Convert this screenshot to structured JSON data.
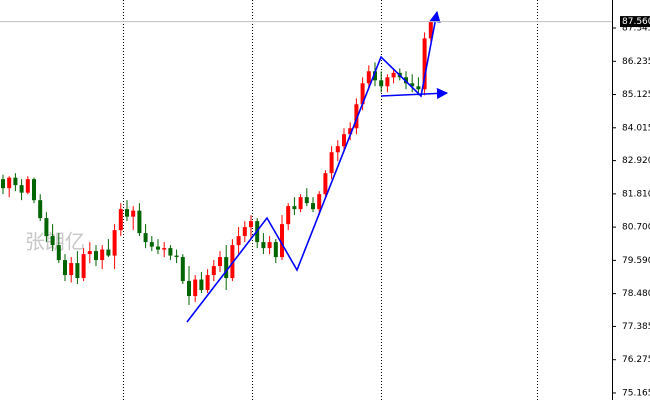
{
  "chart_data": {
    "type": "candlestick",
    "watermark": "张朗亿",
    "up_color": "#ff0000",
    "down_color": "#006400",
    "ylim": [
      74.93,
      88.28
    ],
    "yticks": [
      87.345,
      86.235,
      85.125,
      84.015,
      {
        "value": 82.92,
        "label": "82.920"
      },
      {
        "value": 81.81,
        "label": "81.810"
      },
      {
        "value": 80.7,
        "label": "80.700"
      },
      {
        "value": 79.59,
        "label": "79.590"
      },
      {
        "value": 78.48,
        "label": "78.480"
      },
      77.385,
      76.275,
      75.165
    ],
    "last_price": {
      "value": 87.56,
      "label": "87.560"
    },
    "open": [
      82.3,
      82.0,
      82.35,
      82.1,
      81.85,
      82.3,
      81.6,
      81.0,
      80.4,
      80.1,
      79.6,
      79.1,
      79.5,
      79.0,
      79.8,
      79.9,
      79.6,
      79.95,
      79.75,
      80.6,
      81.3,
      81.05,
      81.25,
      80.5,
      80.2,
      80.05,
      79.95,
      80.0,
      79.75,
      79.7,
      78.9,
      78.4,
      78.95,
      78.6,
      79.1,
      79.4,
      79.7,
      79.0,
      80.1,
      80.4,
      80.7,
      80.9,
      80.2,
      80.0,
      80.2,
      79.7,
      80.8,
      81.4,
      81.3,
      81.7,
      81.5,
      81.3,
      81.8,
      82.5,
      83.2,
      83.4,
      83.8,
      84.0,
      84.8,
      85.5,
      85.9,
      85.6,
      85.4,
      85.7,
      85.85,
      85.7,
      85.5,
      85.4,
      85.3,
      87.0
    ],
    "high": [
      82.45,
      82.4,
      82.5,
      82.3,
      82.4,
      82.35,
      81.8,
      81.2,
      80.8,
      80.5,
      79.8,
      79.7,
      79.9,
      80.0,
      80.2,
      80.1,
      80.1,
      80.3,
      80.8,
      81.5,
      81.6,
      81.4,
      81.5,
      80.8,
      80.4,
      80.3,
      80.2,
      80.1,
      79.95,
      79.8,
      79.4,
      79.1,
      79.2,
      79.3,
      79.6,
      79.9,
      80.1,
      80.3,
      80.7,
      80.9,
      81.1,
      81.0,
      80.5,
      80.4,
      80.3,
      81.1,
      81.5,
      81.7,
      81.8,
      82.0,
      81.7,
      81.9,
      82.6,
      83.4,
      83.6,
      84.0,
      84.2,
      85.0,
      85.7,
      86.1,
      86.2,
      85.9,
      85.8,
      86.0,
      86.0,
      85.9,
      85.8,
      85.7,
      87.2,
      87.6
    ],
    "low": [
      81.8,
      81.7,
      81.9,
      81.6,
      81.8,
      81.5,
      80.9,
      80.2,
      79.9,
      79.5,
      78.9,
      78.85,
      78.8,
      78.9,
      79.5,
      79.4,
      79.3,
      79.7,
      79.3,
      80.4,
      80.9,
      80.6,
      80.4,
      80.0,
      79.9,
      79.8,
      79.7,
      79.6,
      79.5,
      78.8,
      78.1,
      78.2,
      78.5,
      78.5,
      78.9,
      79.2,
      78.6,
      78.9,
      79.8,
      80.2,
      80.3,
      80.0,
      79.8,
      79.8,
      79.5,
      79.6,
      80.6,
      81.1,
      81.2,
      81.4,
      81.2,
      81.1,
      81.7,
      82.3,
      82.9,
      83.2,
      83.6,
      83.8,
      84.6,
      85.3,
      85.4,
      85.2,
      85.2,
      85.5,
      85.6,
      85.3,
      85.2,
      85.1,
      85.1,
      86.9
    ],
    "close": [
      82.0,
      82.35,
      82.1,
      81.85,
      82.3,
      81.6,
      81.0,
      80.4,
      80.1,
      79.6,
      79.1,
      79.5,
      79.0,
      79.8,
      79.9,
      79.6,
      79.95,
      79.75,
      80.6,
      81.3,
      81.05,
      81.25,
      80.5,
      80.2,
      80.05,
      79.95,
      80.0,
      79.75,
      79.7,
      78.9,
      78.4,
      78.95,
      78.6,
      79.1,
      79.4,
      79.7,
      79.0,
      80.1,
      80.4,
      80.7,
      80.9,
      80.2,
      80.0,
      80.2,
      79.7,
      80.8,
      81.4,
      81.3,
      81.7,
      81.5,
      81.3,
      81.8,
      82.5,
      83.2,
      83.4,
      83.8,
      84.0,
      84.8,
      85.5,
      85.9,
      85.6,
      85.4,
      85.7,
      85.85,
      85.7,
      85.5,
      85.4,
      85.3,
      87.0,
      87.56
    ]
  }
}
